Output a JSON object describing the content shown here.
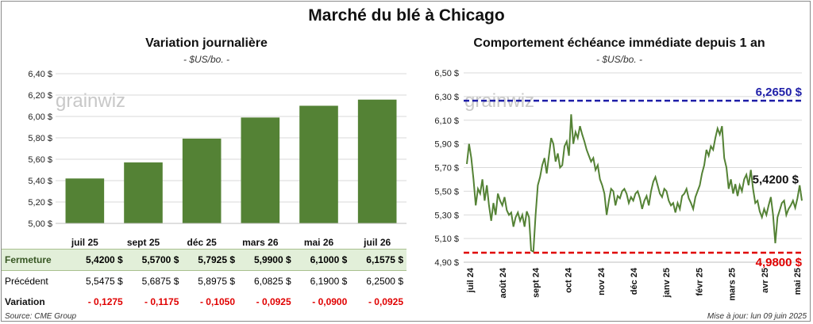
{
  "title": "Marché du blé à Chicago",
  "source": "Source: CME Group",
  "updated": "Mise à jour: lun 09 juin 2025",
  "watermark": "grainwiz",
  "colors": {
    "bar": "#548235",
    "line": "#548235",
    "max_line": "#1f1fa8",
    "min_line": "#e00000"
  },
  "left_chart": {
    "subtitle": "Variation journalière",
    "unit": "- $US/bo. -",
    "chart_data": {
      "type": "bar",
      "categories": [
        "juil 25",
        "sept 25",
        "déc 25",
        "mars 26",
        "mai 26",
        "juil 26"
      ],
      "values": [
        5.42,
        5.57,
        5.7925,
        5.99,
        6.1,
        6.1575
      ],
      "ylim": [
        5.0,
        6.4
      ],
      "yticks": [
        "5,00 $",
        "5,20 $",
        "5,40 $",
        "5,60 $",
        "5,80 $",
        "6,00 $",
        "6,20 $",
        "6,40 $"
      ],
      "grid": true
    }
  },
  "table": {
    "rows": [
      {
        "label": "Fermeture",
        "values": [
          "5,4200  $",
          "5,5700  $",
          "5,7925  $",
          "5,9900  $",
          "6,1000  $",
          "6,1575  $"
        ]
      },
      {
        "label": "Précédent",
        "values": [
          "5,5475  $",
          "5,6875  $",
          "5,8975  $",
          "6,0825  $",
          "6,1900  $",
          "6,2500  $"
        ]
      },
      {
        "label": "Variation",
        "values": [
          "- 0,1275",
          "- 0,1175",
          "- 0,1050",
          "- 0,0925",
          "- 0,0900",
          "- 0,0925"
        ]
      }
    ]
  },
  "right_chart": {
    "subtitle": "Comportement  échéance immédiate depuis 1 an",
    "unit": "- $US/bo. -",
    "chart_data": {
      "type": "line",
      "ylim": [
        4.9,
        6.5
      ],
      "yticks": [
        "4,90 $",
        "5,10 $",
        "5,30 $",
        "5,50 $",
        "5,70 $",
        "5,90 $",
        "6,10 $",
        "6,30 $",
        "6,50 $"
      ],
      "xticks": [
        "juil 24",
        "août 24",
        "sept 24",
        "oct 24",
        "nov 24",
        "déc 24",
        "janv 25",
        "févr 25",
        "mars 25",
        "avr 25",
        "mai 25"
      ],
      "max_value": 6.265,
      "max_label": "6,2650 $",
      "min_value": 4.98,
      "min_label": "4,9800 $",
      "last_label": "5,4200 $",
      "series": [
        {
          "values": [
            5.73,
            5.9,
            5.78,
            5.6,
            5.38,
            5.52,
            5.48,
            5.6,
            5.42,
            5.55,
            5.38,
            5.25,
            5.4,
            5.3,
            5.48,
            5.42,
            5.38,
            5.45,
            5.34,
            5.3,
            5.32,
            5.2,
            5.28,
            5.32,
            5.25,
            5.3,
            5.2,
            5.33,
            5.28,
            5.0,
            4.99,
            5.3,
            5.55,
            5.62,
            5.72,
            5.78,
            5.65,
            5.8,
            5.95,
            5.9,
            5.75,
            5.82,
            5.7,
            5.72,
            5.88,
            5.92,
            5.8,
            6.15,
            5.9,
            6.0,
            5.95,
            6.05,
            5.98,
            5.92,
            5.85,
            5.8,
            5.75,
            5.78,
            5.68,
            5.72,
            5.6,
            5.55,
            5.48,
            5.3,
            5.42,
            5.52,
            5.5,
            5.38,
            5.46,
            5.44,
            5.5,
            5.52,
            5.48,
            5.4,
            5.45,
            5.42,
            5.48,
            5.5,
            5.44,
            5.35,
            5.42,
            5.46,
            5.38,
            5.5,
            5.58,
            5.62,
            5.55,
            5.48,
            5.45,
            5.52,
            5.5,
            5.42,
            5.38,
            5.4,
            5.32,
            5.4,
            5.35,
            5.46,
            5.48,
            5.52,
            5.44,
            5.4,
            5.35,
            5.45,
            5.5,
            5.55,
            5.65,
            5.72,
            5.85,
            5.8,
            5.88,
            5.85,
            5.95,
            6.03,
            5.98,
            6.05,
            5.78,
            5.7,
            5.52,
            5.6,
            5.48,
            5.56,
            5.46,
            5.55,
            5.5,
            5.6,
            5.64,
            5.55,
            5.68,
            5.52,
            5.4,
            5.42,
            5.33,
            5.28,
            5.35,
            5.3,
            5.38,
            5.45,
            5.3,
            5.06,
            5.28,
            5.34,
            5.4,
            5.42,
            5.3,
            5.35,
            5.38,
            5.42,
            5.36,
            5.44,
            5.55,
            5.42
          ]
        }
      ],
      "grid": true
    }
  }
}
